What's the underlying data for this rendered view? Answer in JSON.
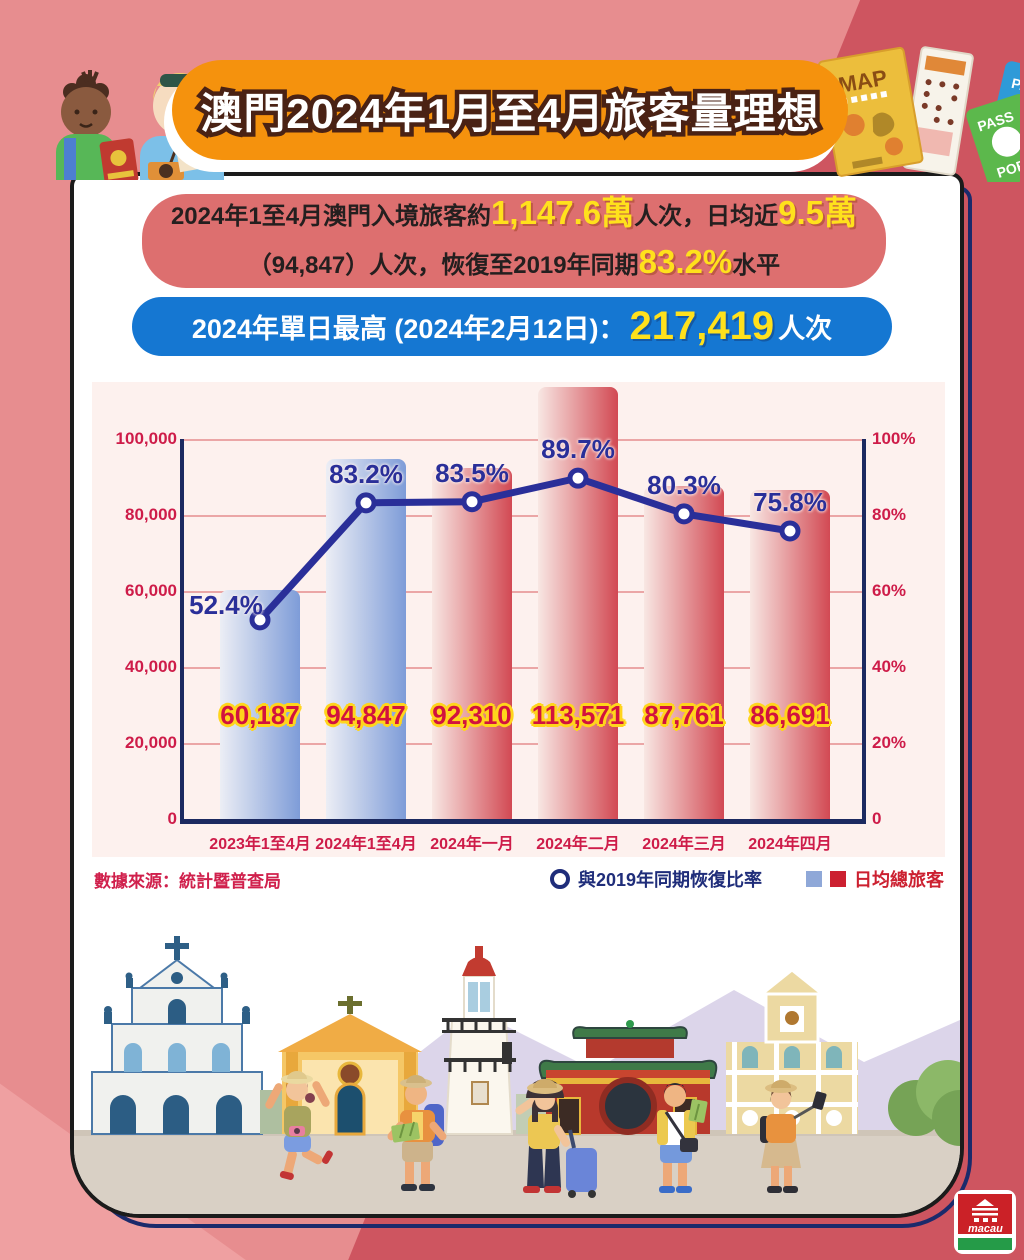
{
  "background": {
    "base": "#e78d8f",
    "dark_red": "#ce5560",
    "light_pink": "#efa0a1"
  },
  "title_banner": {
    "text": "澳門2024年1月至4月旅客量理想",
    "bg": "#f5920d"
  },
  "summary_box": {
    "bg": "#dd6f6f",
    "highlight_color": "#ffe11c",
    "line1_parts": [
      "2024年1至4月澳門入境旅客約",
      "1,147.6萬",
      "人次，日均近",
      "9.5萬"
    ],
    "line2_parts": [
      "（94,847）人次，恢復至2019年同期",
      "83.2%",
      "水平"
    ]
  },
  "highlight_box": {
    "bg": "#1577d2",
    "prefix": "2024年單日最高 (2024年2月12日)：",
    "value": "217,419",
    "suffix": "人次",
    "value_color": "#ffe11c"
  },
  "chart_data": {
    "type": "bar+line",
    "categories": [
      "2023年1至4月",
      "2024年1至4月",
      "2024年一月",
      "2024年二月",
      "2024年三月",
      "2024年四月"
    ],
    "series": [
      {
        "name": "日均總旅客",
        "type": "bar",
        "values": [
          60187,
          94847,
          92310,
          113571,
          87761,
          86691
        ],
        "value_labels": [
          "60,187",
          "94,847",
          "92,310",
          "113,571",
          "87,761",
          "86,691"
        ],
        "bar_styles": [
          "blue",
          "blue",
          "red",
          "red",
          "red",
          "red"
        ]
      },
      {
        "name": "與2019年同期恢復比率",
        "type": "line",
        "values": [
          52.4,
          83.2,
          83.5,
          89.7,
          80.3,
          75.8
        ],
        "point_labels": [
          "52.4%",
          "83.2%",
          "83.5%",
          "89.7%",
          "80.3%",
          "75.8%"
        ]
      }
    ],
    "left_axis": {
      "min": 0,
      "max": 100000,
      "ticks": [
        "100,000",
        "80,000",
        "60,000",
        "40,000",
        "20,000",
        "0"
      ]
    },
    "right_axis": {
      "min": 0,
      "max": 100,
      "ticks": [
        "100%",
        "80%",
        "60%",
        "40%",
        "20%",
        "0"
      ]
    },
    "grid": true,
    "legend_position": "bottom-right",
    "style": {
      "panel_bg": "#fdf1ee",
      "axis_color": "#1c2a60",
      "grid_color": "#eba6a6",
      "tick_color": "#ce1c49",
      "bar_blue": [
        "#eceef5",
        "#7e9cd8"
      ],
      "bar_red": [
        "#f8e7e3",
        "#d24953"
      ],
      "line_color": "#2a2f99",
      "marker_fill": "#ffffff",
      "value_label_color": "#d2123e",
      "value_label_outline": "#ffd51c",
      "pct_label_color": "#2a2f99"
    }
  },
  "footer": {
    "source": "數據來源：統計暨普查局",
    "legend_line_label": "與2019年同期恢復比率",
    "legend_bar_label": "日均總旅客",
    "legend_blue": "#8fa8d8",
    "legend_red": "#cc2030"
  },
  "decor": {
    "map_label": "MAP",
    "passport_top": "PASS",
    "passport_bottom": "PORT"
  },
  "logo": {
    "text": "macau"
  }
}
